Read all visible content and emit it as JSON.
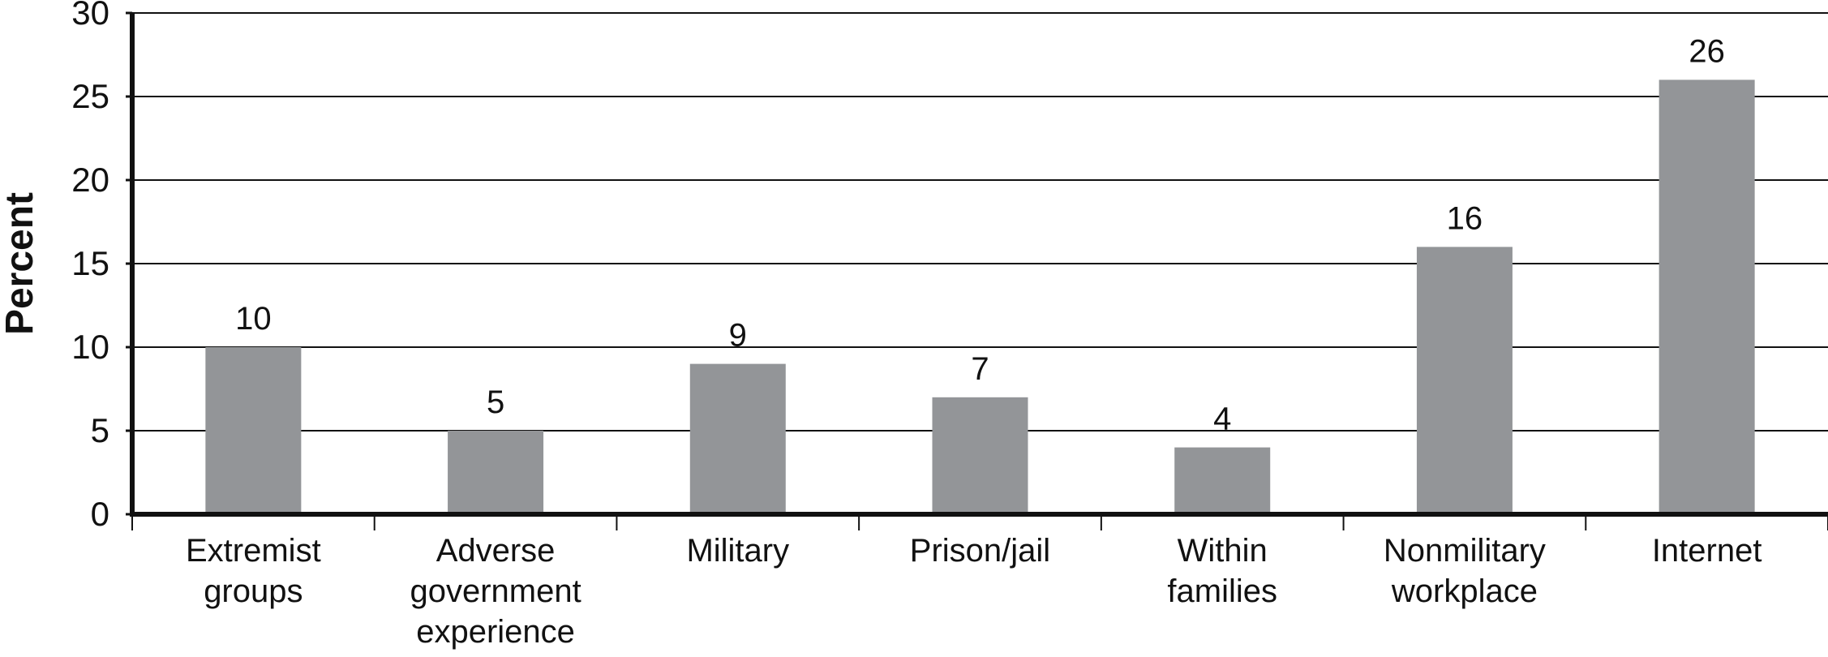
{
  "chart_data": {
    "type": "bar",
    "title": "",
    "xlabel": "",
    "ylabel": "Percent",
    "ylim": [
      0,
      30
    ],
    "yticks": [
      0,
      5,
      10,
      15,
      20,
      25,
      30
    ],
    "grid": true,
    "legend": "none",
    "categories": [
      [
        "Extremist",
        "groups"
      ],
      [
        "Adverse",
        "government",
        "experience"
      ],
      [
        "Military"
      ],
      [
        "Prison/jail"
      ],
      [
        "Within",
        "families"
      ],
      [
        "Nonmilitary",
        "workplace"
      ],
      [
        "Internet"
      ]
    ],
    "values": [
      10,
      5,
      9,
      7,
      4,
      16,
      26
    ],
    "value_labels": [
      "10",
      "5",
      "9",
      "7",
      "4",
      "16",
      "26"
    ],
    "bar_color": "#939598",
    "axis_color": "#111111",
    "grid_color": "#111111"
  }
}
